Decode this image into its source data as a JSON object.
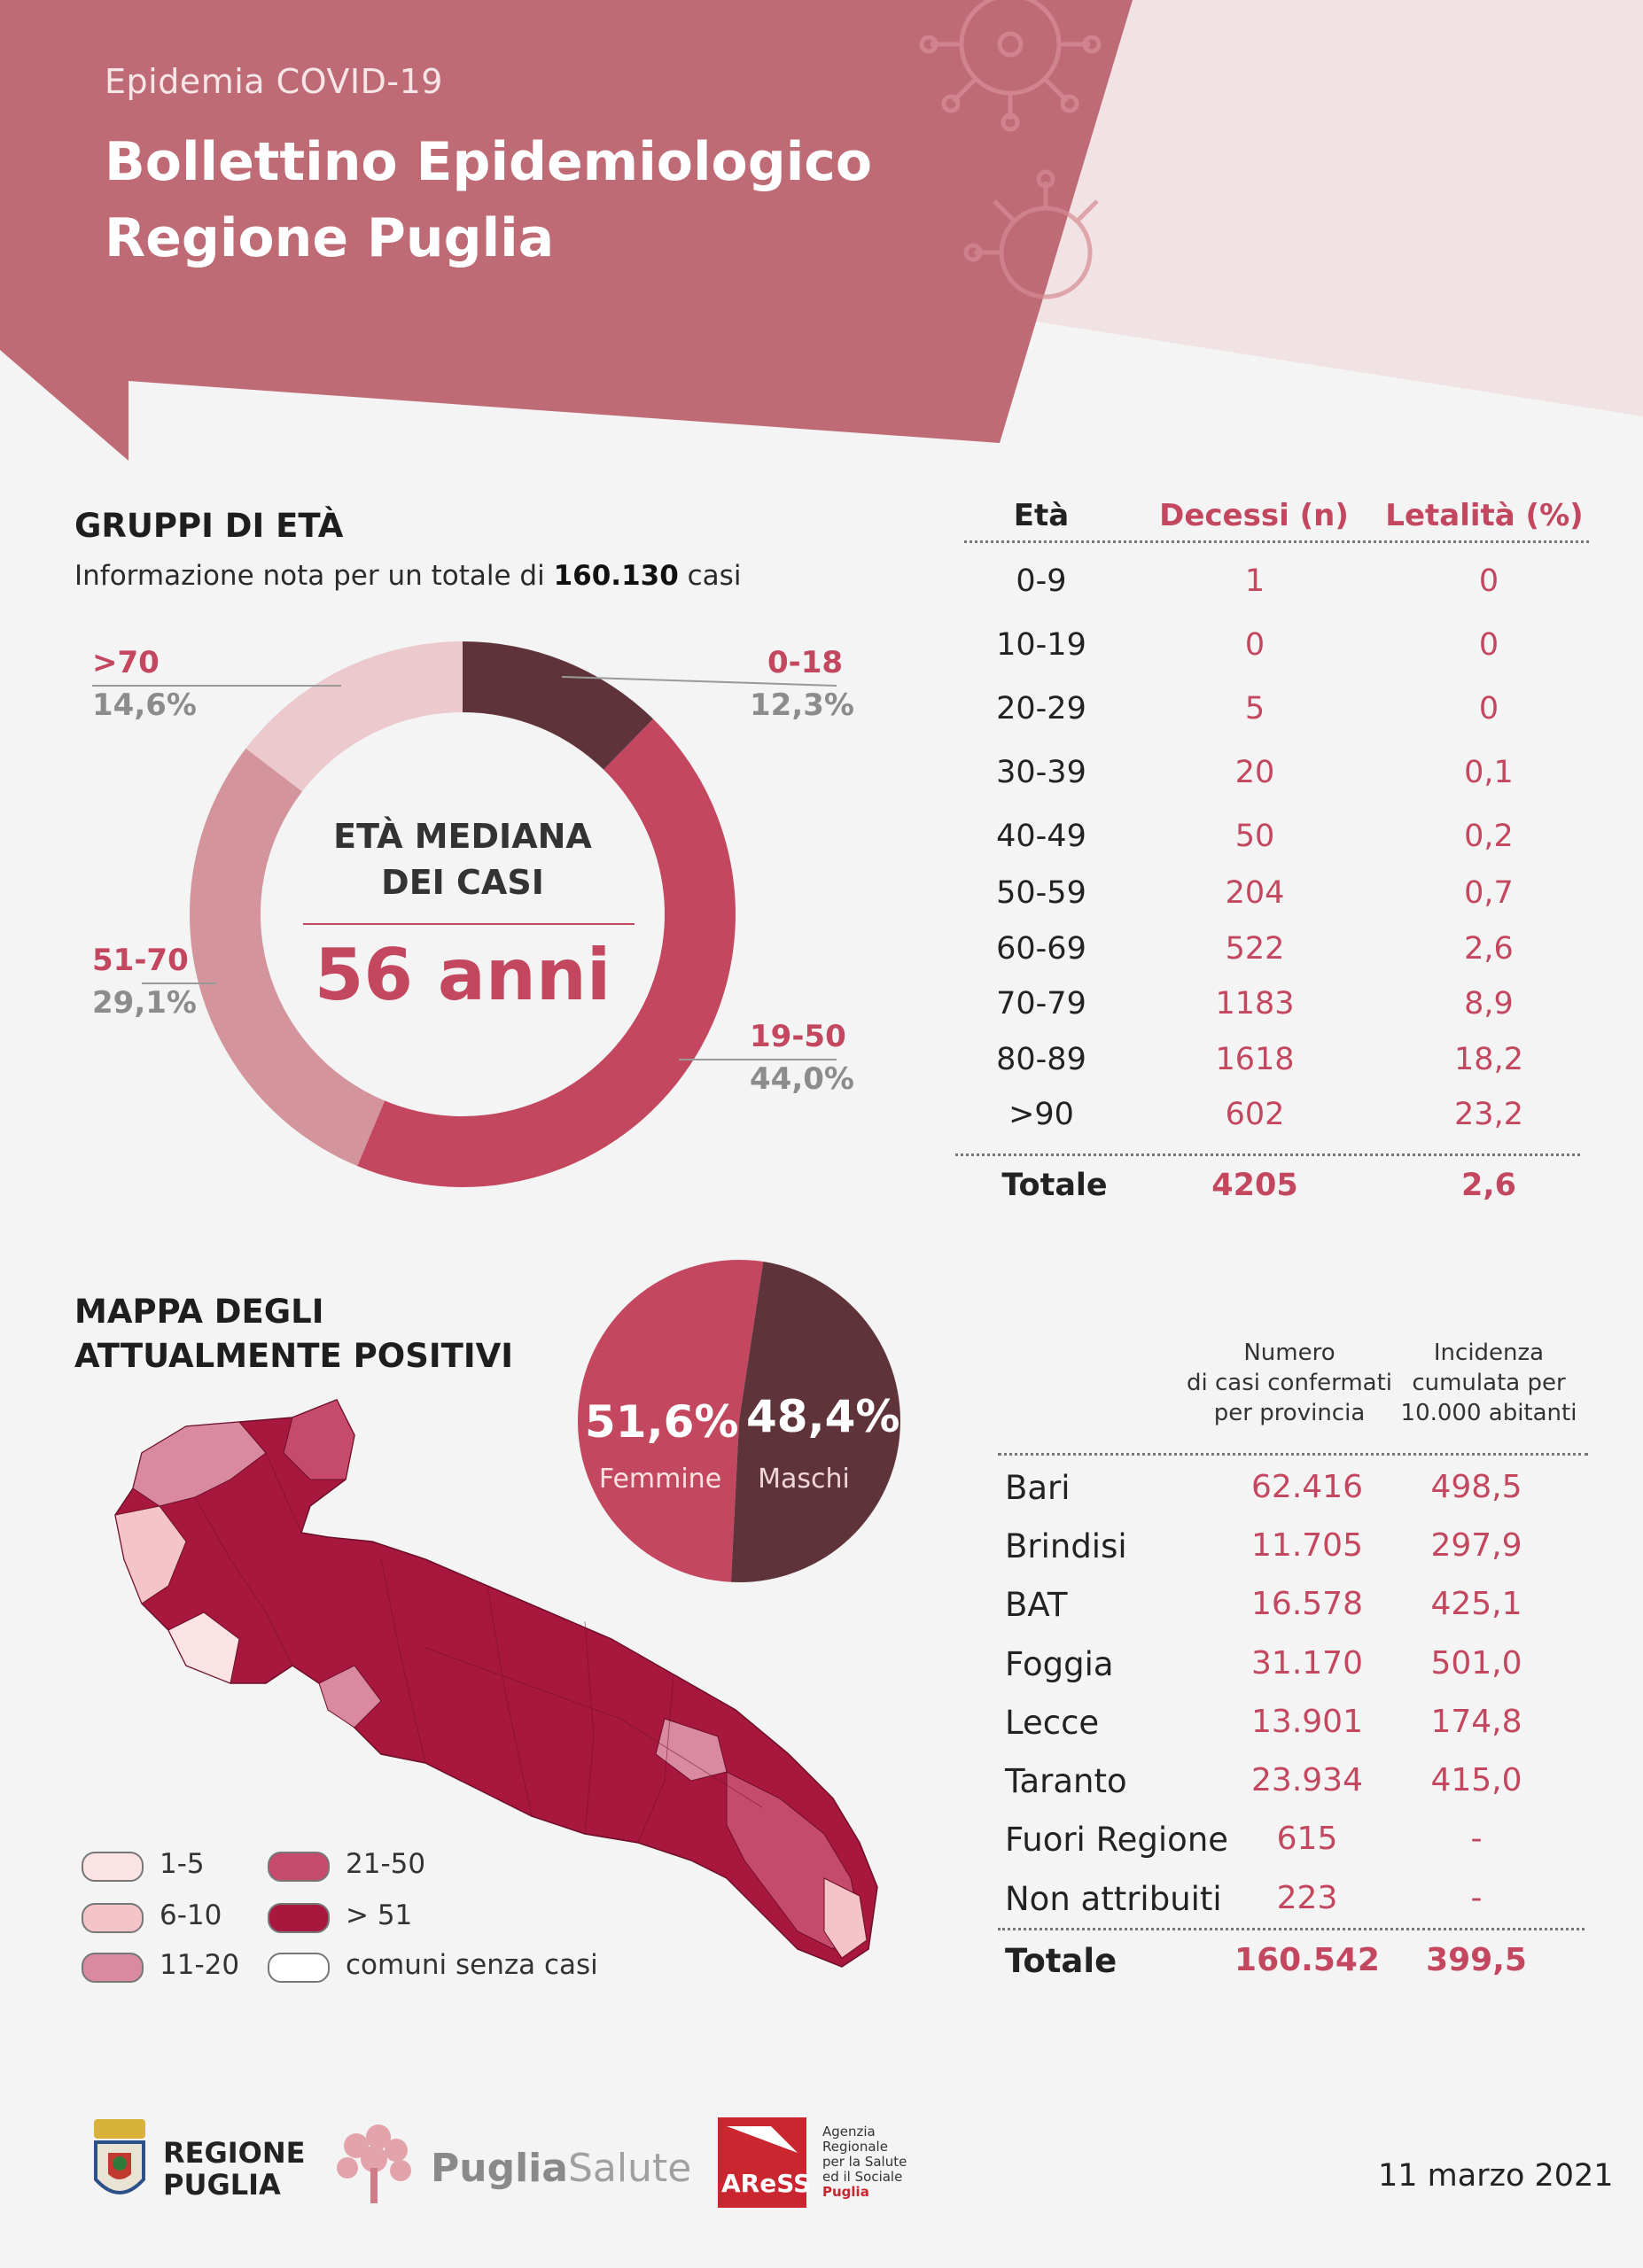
{
  "header": {
    "subtitle": "Epidemia COVID-19",
    "title_line1": "Bollettino Epidemiologico",
    "title_line2": "Regione Puglia"
  },
  "age_groups": {
    "title": "GRUPPI DI ETÀ",
    "note_prefix": "Informazione nota per un totale di",
    "note_value": "160.130",
    "note_suffix": "casi",
    "center_line1": "ETÀ MEDIANA",
    "center_line2": "DEI CASI",
    "center_value": "56 anni",
    "colors": {
      "0-18": "#5e343a",
      "19-50": "#c2475f",
      "51-70": "#d3949b",
      ">70": "#ebc9cd"
    }
  },
  "chart_data": [
    {
      "type": "pie",
      "variant": "donut",
      "categories": [
        "0-18",
        "19-50",
        "51-70",
        ">70"
      ],
      "values": [
        12.3,
        44.0,
        29.1,
        14.6
      ],
      "labels": [
        "12,3%",
        "44,0%",
        "29,1%",
        "14,6%"
      ]
    },
    {
      "type": "pie",
      "categories": [
        "Femmine",
        "Maschi"
      ],
      "values": [
        51.6,
        48.4
      ],
      "labels": [
        "51,6%",
        "48,4%"
      ],
      "colors": [
        "#c2475f",
        "#5e343a"
      ]
    }
  ],
  "deaths_table": {
    "headers": [
      "Età",
      "Decessi (n)",
      "Letalità (%)"
    ],
    "rows": [
      [
        "0-9",
        "1",
        "0"
      ],
      [
        "10-19",
        "0",
        "0"
      ],
      [
        "20-29",
        "5",
        "0"
      ],
      [
        "30-39",
        "20",
        "0,1"
      ],
      [
        "40-49",
        "50",
        "0,2"
      ],
      [
        "50-59",
        "204",
        "0,7"
      ],
      [
        "60-69",
        "522",
        "2,6"
      ],
      [
        "70-79",
        "1183",
        "8,9"
      ],
      [
        "80-89",
        "1618",
        "18,2"
      ],
      [
        ">90",
        "602",
        "23,2"
      ]
    ],
    "total": [
      "Totale",
      "4205",
      "2,6"
    ]
  },
  "map": {
    "title_line1": "MAPPA DEGLI",
    "title_line2": "ATTUALMENTE POSITIVI",
    "legend": [
      {
        "label": "1-5",
        "color": "#fbe3e3"
      },
      {
        "label": "6-10",
        "color": "#f4c4c8"
      },
      {
        "label": "11-20",
        "color": "#d98aa0"
      },
      {
        "label": "21-50",
        "color": "#c64a6c"
      },
      {
        "label": "> 51",
        "color": "#a8173e"
      },
      {
        "label": "comuni senza casi",
        "color": "#ffffff"
      }
    ]
  },
  "province_table": {
    "header_cases": [
      "Numero",
      "di casi confermati",
      "per provincia"
    ],
    "header_incidence": [
      "Incidenza",
      "cumulata per",
      "10.000 abitanti"
    ],
    "rows": [
      [
        "Bari",
        "62.416",
        "498,5"
      ],
      [
        "Brindisi",
        "11.705",
        "297,9"
      ],
      [
        "BAT",
        "16.578",
        "425,1"
      ],
      [
        "Foggia",
        "31.170",
        "501,0"
      ],
      [
        "Lecce",
        "13.901",
        "174,8"
      ],
      [
        "Taranto",
        "23.934",
        "415,0"
      ],
      [
        "Fuori Regione",
        "615",
        "-"
      ],
      [
        "Non attribuiti",
        "223",
        "-"
      ]
    ],
    "total": [
      "Totale",
      "160.542",
      "399,5"
    ]
  },
  "footer": {
    "logo1_line1": "REGIONE",
    "logo1_line2": "PUGLIA",
    "logo2_part1": "Puglia",
    "logo2_part2": "Salute",
    "logo3_mark": "AReSS",
    "logo3_text": [
      "Agenzia",
      "Regionale",
      "per la Salute",
      "ed il Sociale",
      "Puglia"
    ],
    "date": "11 marzo 2021"
  }
}
